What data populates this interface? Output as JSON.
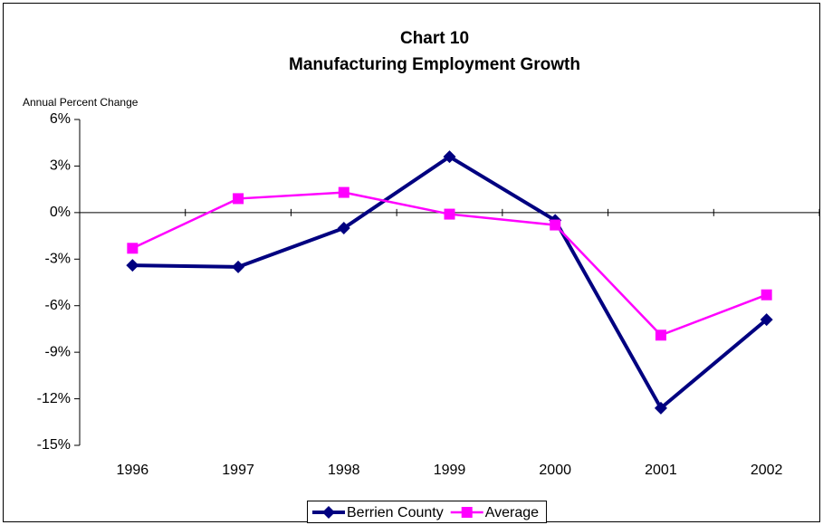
{
  "chart_data": {
    "type": "line",
    "title": "Chart 10",
    "subtitle": "Manufacturing Employment Growth",
    "y_label": "Annual Percent Change",
    "categories": [
      "1996",
      "1997",
      "1998",
      "1999",
      "2000",
      "2001",
      "2002"
    ],
    "series": [
      {
        "name": "Berrien County",
        "color": "#000080",
        "marker": "diamond",
        "values": [
          -3.4,
          -3.5,
          -1.0,
          3.6,
          -0.5,
          -12.6,
          -6.9
        ]
      },
      {
        "name": "Average",
        "color": "#ff00ff",
        "marker": "square",
        "values": [
          -2.3,
          0.9,
          1.3,
          -0.1,
          -0.8,
          -7.9,
          -5.3
        ]
      }
    ],
    "ylim": [
      -15,
      6
    ],
    "yticks": [
      {
        "value": -15,
        "label": "-15%"
      },
      {
        "value": -12,
        "label": "-12%"
      },
      {
        "value": -9,
        "label": "-9%"
      },
      {
        "value": -6,
        "label": "-6%"
      },
      {
        "value": -3,
        "label": "-3%"
      },
      {
        "value": 0,
        "label": "0%"
      },
      {
        "value": 3,
        "label": "3%"
      },
      {
        "value": 6,
        "label": "6%"
      }
    ],
    "grid": false,
    "legend": "bottom"
  }
}
